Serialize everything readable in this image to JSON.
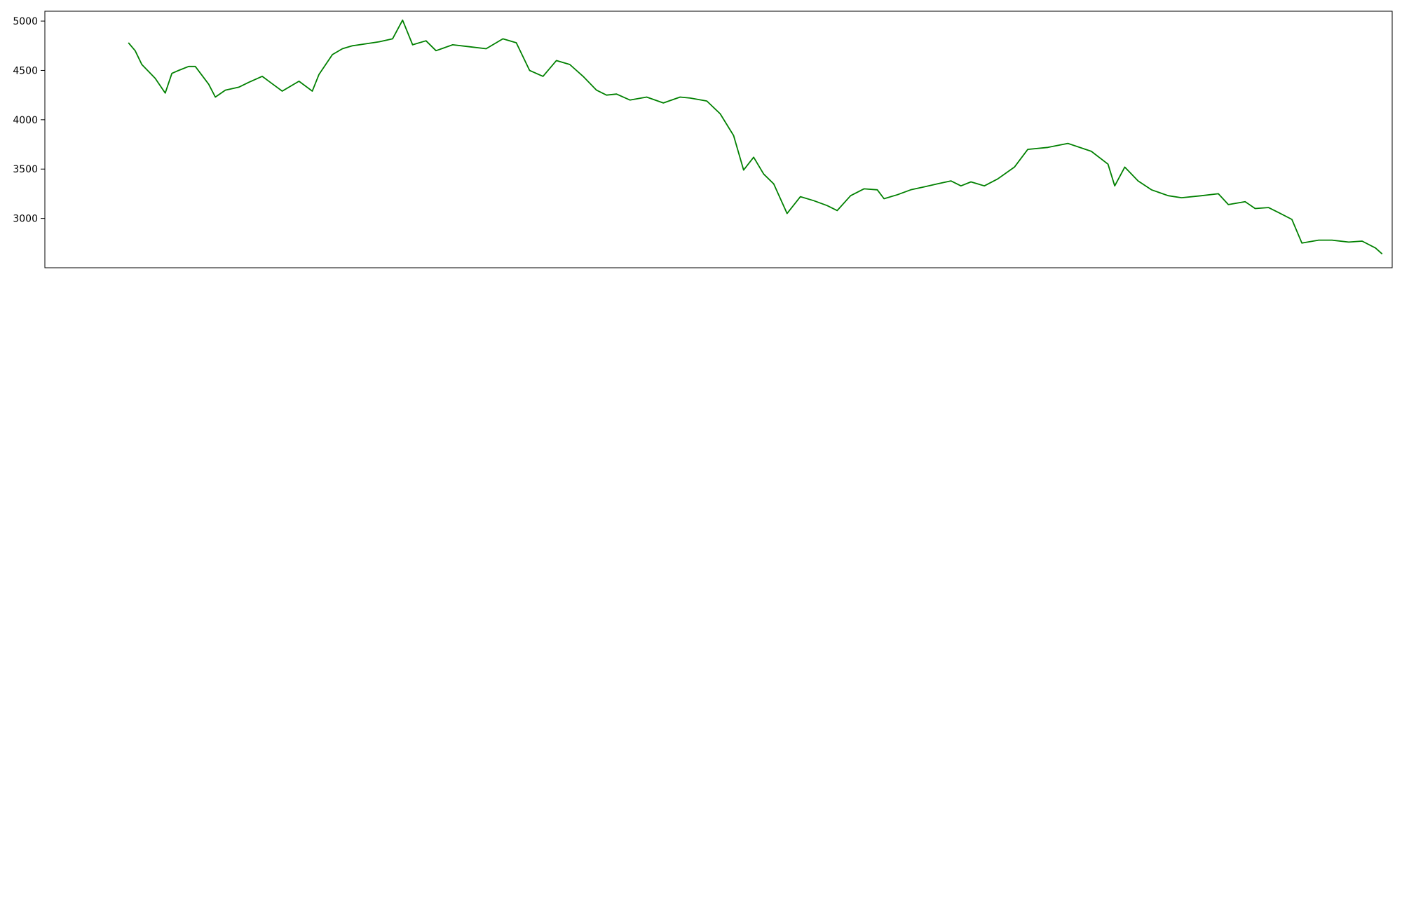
{
  "chart_data": [
    {
      "type": "line",
      "panel": "price",
      "color": "#008000",
      "x_range": [
        "2022-01-16",
        "2023-02-23"
      ],
      "ylim": [
        2500,
        5100
      ],
      "y_ticks": [
        3000,
        3500,
        4000,
        4500,
        5000
      ],
      "series": [
        {
          "points": [
            [
              "2022-02-10",
              4780
            ],
            [
              "2022-02-12",
              4700
            ],
            [
              "2022-02-14",
              4560
            ],
            [
              "2022-02-18",
              4420
            ],
            [
              "2022-02-21",
              4270
            ],
            [
              "2022-02-23",
              4470
            ],
            [
              "2022-02-25",
              4500
            ],
            [
              "2022-02-28",
              4540
            ],
            [
              "2022-03-02",
              4540
            ],
            [
              "2022-03-06",
              4360
            ],
            [
              "2022-03-08",
              4230
            ],
            [
              "2022-03-11",
              4300
            ],
            [
              "2022-03-15",
              4330
            ],
            [
              "2022-03-18",
              4380
            ],
            [
              "2022-03-22",
              4440
            ],
            [
              "2022-03-28",
              4290
            ],
            [
              "2022-04-02",
              4390
            ],
            [
              "2022-04-06",
              4290
            ],
            [
              "2022-04-08",
              4460
            ],
            [
              "2022-04-12",
              4660
            ],
            [
              "2022-04-15",
              4720
            ],
            [
              "2022-04-18",
              4750
            ],
            [
              "2022-04-22",
              4770
            ],
            [
              "2022-04-26",
              4790
            ],
            [
              "2022-04-30",
              4820
            ],
            [
              "2022-05-03",
              5010
            ],
            [
              "2022-05-06",
              4760
            ],
            [
              "2022-05-10",
              4800
            ],
            [
              "2022-05-13",
              4700
            ],
            [
              "2022-05-18",
              4760
            ],
            [
              "2022-05-23",
              4740
            ],
            [
              "2022-05-28",
              4720
            ],
            [
              "2022-06-02",
              4820
            ],
            [
              "2022-06-06",
              4780
            ],
            [
              "2022-06-10",
              4500
            ],
            [
              "2022-06-14",
              4440
            ],
            [
              "2022-06-18",
              4600
            ],
            [
              "2022-06-22",
              4560
            ],
            [
              "2022-06-26",
              4440
            ],
            [
              "2022-06-30",
              4300
            ],
            [
              "2022-07-03",
              4250
            ],
            [
              "2022-07-06",
              4260
            ],
            [
              "2022-07-10",
              4200
            ],
            [
              "2022-07-15",
              4230
            ],
            [
              "2022-07-20",
              4170
            ],
            [
              "2022-07-25",
              4230
            ],
            [
              "2022-07-28",
              4220
            ],
            [
              "2022-08-02",
              4190
            ],
            [
              "2022-08-06",
              4060
            ],
            [
              "2022-08-10",
              3840
            ],
            [
              "2022-08-13",
              3490
            ],
            [
              "2022-08-16",
              3620
            ],
            [
              "2022-08-19",
              3450
            ],
            [
              "2022-08-22",
              3350
            ],
            [
              "2022-08-26",
              3050
            ],
            [
              "2022-08-30",
              3220
            ],
            [
              "2022-09-03",
              3180
            ],
            [
              "2022-09-07",
              3130
            ],
            [
              "2022-09-10",
              3080
            ],
            [
              "2022-09-14",
              3230
            ],
            [
              "2022-09-18",
              3300
            ],
            [
              "2022-09-22",
              3290
            ],
            [
              "2022-09-24",
              3200
            ],
            [
              "2022-09-28",
              3240
            ],
            [
              "2022-10-02",
              3290
            ],
            [
              "2022-10-06",
              3320
            ],
            [
              "2022-10-10",
              3350
            ],
            [
              "2022-10-14",
              3380
            ],
            [
              "2022-10-17",
              3330
            ],
            [
              "2022-10-20",
              3370
            ],
            [
              "2022-10-24",
              3330
            ],
            [
              "2022-10-28",
              3400
            ],
            [
              "2022-11-02",
              3520
            ],
            [
              "2022-11-06",
              3700
            ],
            [
              "2022-11-12",
              3720
            ],
            [
              "2022-11-18",
              3760
            ],
            [
              "2022-11-25",
              3680
            ],
            [
              "2022-11-30",
              3550
            ],
            [
              "2022-12-02",
              3330
            ],
            [
              "2022-12-05",
              3520
            ],
            [
              "2022-12-09",
              3380
            ],
            [
              "2022-12-13",
              3290
            ],
            [
              "2022-12-18",
              3230
            ],
            [
              "2022-12-22",
              3210
            ],
            [
              "2022-12-28",
              3230
            ],
            [
              "2023-01-02",
              3250
            ],
            [
              "2023-01-05",
              3140
            ],
            [
              "2023-01-10",
              3170
            ],
            [
              "2023-01-13",
              3100
            ],
            [
              "2023-01-17",
              3110
            ],
            [
              "2023-01-20",
              3060
            ],
            [
              "2023-01-24",
              2990
            ],
            [
              "2023-01-27",
              2750
            ],
            [
              "2023-02-01",
              2780
            ],
            [
              "2023-02-05",
              2780
            ],
            [
              "2023-02-10",
              2760
            ],
            [
              "2023-02-14",
              2770
            ],
            [
              "2023-02-18",
              2700
            ],
            [
              "2023-02-20",
              2640
            ]
          ]
        }
      ]
    }
  ]
}
